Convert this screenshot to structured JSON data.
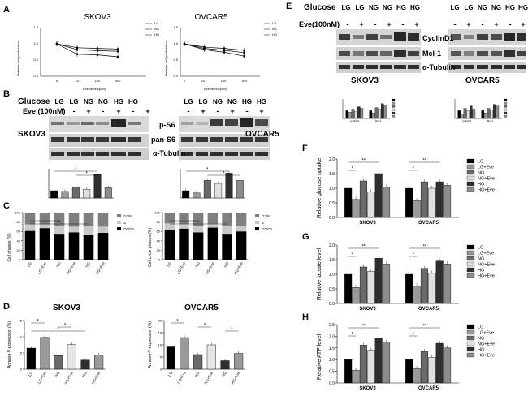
{
  "panels": [
    "A",
    "B",
    "C",
    "D",
    "E",
    "F",
    "G",
    "H"
  ],
  "colors": {
    "bar_shades": [
      "#000000",
      "#9a9a9a",
      "#6a6a6a",
      "#e0e0e0",
      "#2f2f2f",
      "#8c8c8c"
    ],
    "stack": {
      "G2M": "#7f7f7f",
      "S": "#c8c8c8",
      "G0G1": "#000000"
    },
    "blot_band": "#1c1c1c",
    "blot_bg": "#d7d7d7"
  },
  "panelA": {
    "charts": [
      {
        "title": "SKOV3",
        "ylabel": "Relative cell proliferation",
        "xlabel": "Everolimus(nM)",
        "xticks": [
          "0",
          "10",
          "100",
          "500"
        ],
        "yticks": [
          "1.5",
          "1.0",
          "0.5",
          "0.0"
        ],
        "legend": [
          "LG",
          "NG",
          "HG"
        ],
        "series": [
          {
            "name": "LG",
            "values": [
              1.0,
              0.88,
              0.86,
              0.84
            ]
          },
          {
            "name": "NG",
            "values": [
              1.0,
              0.82,
              0.79,
              0.77
            ]
          },
          {
            "name": "HG",
            "values": [
              1.0,
              0.68,
              0.66,
              0.6
            ]
          }
        ]
      },
      {
        "title": "OVCAR5",
        "ylabel": "Relative cell proliferation",
        "xlabel": "Everolimus(nM)",
        "xticks": [
          "0",
          "10",
          "100",
          "500"
        ],
        "yticks": [
          "1.5",
          "1.0",
          "0.5",
          "0.0"
        ],
        "legend": [
          "LG",
          "NG",
          "HG"
        ],
        "series": [
          {
            "name": "LG",
            "values": [
              1.0,
              0.9,
              0.86,
              0.8
            ]
          },
          {
            "name": "NG",
            "values": [
              1.0,
              0.86,
              0.8,
              0.73
            ]
          },
          {
            "name": "HG",
            "values": [
              1.0,
              0.82,
              0.74,
              0.62
            ]
          }
        ]
      }
    ]
  },
  "panelB": {
    "glucose_label": "Glucose",
    "eve_label": "Eve (100nM)",
    "lanes": [
      "LG",
      "LG",
      "NG",
      "NG",
      "HG",
      "HG"
    ],
    "eve_signs": [
      "-",
      "+",
      "-",
      "+",
      "-",
      "+"
    ],
    "left_cell": "SKOV3",
    "right_cell": "OVCAR5",
    "proteins": [
      "p-S6",
      "pan-S6",
      "α-Tubulin"
    ]
  },
  "panelC": {
    "ylabels": [
      "Cell phases (%)",
      "Cell cycle phases (%)"
    ],
    "legend": [
      "G2/M",
      "S",
      "G0/G1"
    ],
    "categories": [
      "LG",
      "LG+Eve",
      "NG",
      "NG+Eve",
      "HG",
      "HG+Eve"
    ],
    "yticks": [
      "100",
      "80",
      "60",
      "40",
      "20",
      "0"
    ],
    "charts": [
      {
        "G0G1": [
          61,
          67,
          55,
          58,
          52,
          57
        ],
        "S": [
          14,
          8,
          17,
          12,
          20,
          13
        ],
        "G2M": [
          25,
          25,
          28,
          30,
          28,
          30
        ]
      },
      {
        "G0G1": [
          63,
          66,
          58,
          68,
          55,
          60
        ],
        "S": [
          14,
          10,
          14,
          8,
          17,
          12
        ],
        "G2M": [
          23,
          24,
          28,
          24,
          28,
          28
        ]
      }
    ]
  },
  "panelD": {
    "ylabel": "Annexin-V expression (%)",
    "categories": [
      "LG",
      "LG+Eve",
      "NG",
      "NG+Eve",
      "HG",
      "HG+Eve"
    ],
    "charts": [
      {
        "title": "SKOV3",
        "yticks": [
          "15",
          "10",
          "5",
          "0"
        ],
        "values": [
          6.5,
          9.8,
          4.2,
          7.6,
          2.8,
          4.4
        ]
      },
      {
        "title": "OVCAR5",
        "yticks": [
          "20",
          "15",
          "10",
          "5",
          "0"
        ],
        "values": [
          9.5,
          13.0,
          6.0,
          10.0,
          3.5,
          6.5
        ]
      }
    ]
  },
  "panelE": {
    "glucose_label": "Glucose",
    "eve_label": "Eve(100nM)",
    "lanes": [
      "LG",
      "LG",
      "NG",
      "NG",
      "HG",
      "HG"
    ],
    "eve_signs": [
      "-",
      "+",
      "-",
      "+",
      "-",
      "+"
    ],
    "proteins": [
      "CyclinD1",
      "Mcl-1",
      "α-Tubulin"
    ],
    "left_cell": "SKOV3",
    "right_cell": "OVCAR5",
    "mini_xlabels": [
      "cyclinD1",
      "Mcl-1"
    ]
  },
  "panelF": {
    "ylabel": "Relative glucose uptake",
    "groups": [
      "SKOV3",
      "OVCAR5"
    ],
    "legend": [
      "LG",
      "LG+Eve",
      "NG",
      "NG+Eve",
      "HG",
      "HG+Eve"
    ],
    "yticks": [
      "2.0",
      "1.5",
      "1.0",
      "0.5",
      "0.0"
    ],
    "chart_data": {
      "type": "bar",
      "ylim": [
        0,
        2.0
      ],
      "series": [
        {
          "name": "LG",
          "values": [
            1.0,
            1.0
          ]
        },
        {
          "name": "LG+Eve",
          "values": [
            0.62,
            0.58
          ]
        },
        {
          "name": "NG",
          "values": [
            1.25,
            1.22
          ]
        },
        {
          "name": "NG+Eve",
          "values": [
            0.88,
            1.0
          ]
        },
        {
          "name": "HG",
          "values": [
            1.5,
            1.22
          ]
        },
        {
          "name": "HG+Eve",
          "values": [
            1.05,
            1.1
          ]
        }
      ]
    }
  },
  "panelG": {
    "ylabel": "Relative lactate level",
    "groups": [
      "SKOV3",
      "OVCAR5"
    ],
    "legend": [
      "LG",
      "LG+Eve",
      "NG",
      "NG+Eve",
      "HG",
      "HG+Eve"
    ],
    "yticks": [
      "2.0",
      "1.5",
      "1.0",
      "0.5",
      "0.0"
    ],
    "chart_data": {
      "type": "bar",
      "ylim": [
        0,
        2.0
      ],
      "series": [
        {
          "name": "LG",
          "values": [
            1.0,
            1.0
          ]
        },
        {
          "name": "LG+Eve",
          "values": [
            0.55,
            0.6
          ]
        },
        {
          "name": "NG",
          "values": [
            1.25,
            1.2
          ]
        },
        {
          "name": "NG+Eve",
          "values": [
            1.1,
            1.05
          ]
        },
        {
          "name": "HG",
          "values": [
            1.55,
            1.45
          ]
        },
        {
          "name": "HG+Eve",
          "values": [
            1.35,
            1.35
          ]
        }
      ]
    }
  },
  "panelH": {
    "ylabel": "Relative ATP level",
    "groups": [
      "SKOV3",
      "OVCAR5"
    ],
    "legend": [
      "LG",
      "LG+Eve",
      "NG",
      "NG+Eve",
      "HG",
      "HG+Eve"
    ],
    "yticks": [
      "2.5",
      "2.0",
      "1.5",
      "1.0",
      "0.5",
      "0.0"
    ],
    "chart_data": {
      "type": "bar",
      "ylim": [
        0,
        2.5
      ],
      "series": [
        {
          "name": "LG",
          "values": [
            1.0,
            1.0
          ]
        },
        {
          "name": "LG+Eve",
          "values": [
            0.55,
            0.62
          ]
        },
        {
          "name": "NG",
          "values": [
            1.62,
            1.35
          ]
        },
        {
          "name": "NG+Eve",
          "values": [
            1.4,
            1.1
          ]
        },
        {
          "name": "HG",
          "values": [
            1.9,
            1.7
          ]
        },
        {
          "name": "HG+Eve",
          "values": [
            1.75,
            1.5
          ]
        }
      ]
    }
  },
  "significance": {
    "star": "*",
    "double_star": "**"
  }
}
